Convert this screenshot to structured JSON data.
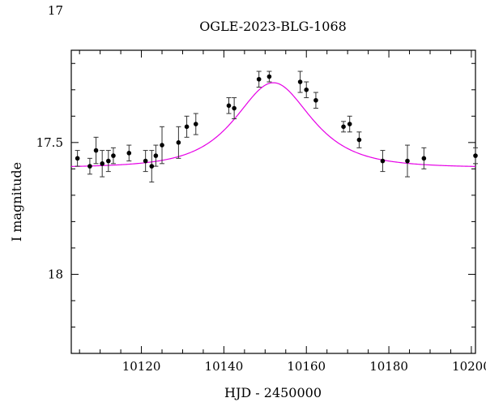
{
  "chart_data": {
    "type": "scatter",
    "title": "OGLE-2023-BLG-1068",
    "xlabel": "HJD - 2450000",
    "ylabel": "I magnitude",
    "xlim": [
      10103,
      10201
    ],
    "ylim": [
      18.3,
      17.15
    ],
    "y_inverted": true,
    "grid": false,
    "x_ticks": [
      10120,
      10140,
      10160,
      10180,
      10200
    ],
    "x_tick_labels": [
      "10120",
      "10140",
      "10160",
      "10180",
      "10200"
    ],
    "y_ticks": [
      17,
      17.5,
      18
    ],
    "y_tick_labels": [
      "17",
      "17.5",
      "18"
    ],
    "colors": {
      "points": "#000000",
      "model": "#e600e6"
    },
    "points": [
      {
        "x": 10104.5,
        "y": 17.56,
        "err": 0.03
      },
      {
        "x": 10107.5,
        "y": 17.59,
        "err": 0.03
      },
      {
        "x": 10109.0,
        "y": 17.53,
        "err": 0.05
      },
      {
        "x": 10110.5,
        "y": 17.58,
        "err": 0.05
      },
      {
        "x": 10112.0,
        "y": 17.57,
        "err": 0.04
      },
      {
        "x": 10113.2,
        "y": 17.55,
        "err": 0.03
      },
      {
        "x": 10117.0,
        "y": 17.54,
        "err": 0.03
      },
      {
        "x": 10121.0,
        "y": 17.57,
        "err": 0.04
      },
      {
        "x": 10122.5,
        "y": 17.59,
        "err": 0.06
      },
      {
        "x": 10123.5,
        "y": 17.55,
        "err": 0.04
      },
      {
        "x": 10125.0,
        "y": 17.51,
        "err": 0.07
      },
      {
        "x": 10129.0,
        "y": 17.5,
        "err": 0.06
      },
      {
        "x": 10131.0,
        "y": 17.44,
        "err": 0.04
      },
      {
        "x": 10133.2,
        "y": 17.43,
        "err": 0.04
      },
      {
        "x": 10141.2,
        "y": 17.36,
        "err": 0.03
      },
      {
        "x": 10142.5,
        "y": 17.37,
        "err": 0.04
      },
      {
        "x": 10148.5,
        "y": 17.26,
        "err": 0.03
      },
      {
        "x": 10151.0,
        "y": 17.25,
        "err": 0.02
      },
      {
        "x": 10158.5,
        "y": 17.27,
        "err": 0.04
      },
      {
        "x": 10160.0,
        "y": 17.3,
        "err": 0.03
      },
      {
        "x": 10162.3,
        "y": 17.34,
        "err": 0.03
      },
      {
        "x": 10169.0,
        "y": 17.44,
        "err": 0.02
      },
      {
        "x": 10170.5,
        "y": 17.43,
        "err": 0.03
      },
      {
        "x": 10172.8,
        "y": 17.49,
        "err": 0.03
      },
      {
        "x": 10178.5,
        "y": 17.57,
        "err": 0.04
      },
      {
        "x": 10184.5,
        "y": 17.57,
        "err": 0.06
      },
      {
        "x": 10188.5,
        "y": 17.56,
        "err": 0.04
      },
      {
        "x": 10201.0,
        "y": 17.55,
        "err": 0.03
      }
    ],
    "model": {
      "peak_x": 10152.0,
      "peak_mag": 17.25,
      "baseline_mag": 17.595,
      "tE": 11.0,
      "x": [
        10103,
        10110,
        10118,
        10125,
        10130,
        10135,
        10140,
        10144,
        10147,
        10150,
        10152,
        10154,
        10157,
        10160,
        10164,
        10168,
        10172,
        10178,
        10185,
        10192,
        10201
      ]
    }
  }
}
